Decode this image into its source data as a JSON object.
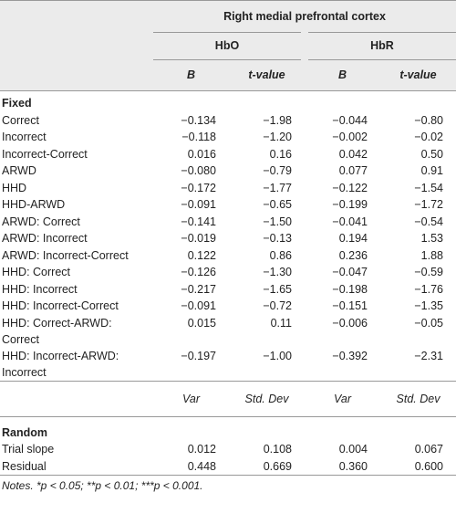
{
  "header": {
    "title": "Right medial prefrontal cortex",
    "groups": [
      "HbO",
      "HbR"
    ],
    "columns": [
      "B",
      "t-value",
      "B",
      "t-value"
    ]
  },
  "fixed": {
    "label": "Fixed",
    "rows": [
      [
        "Correct",
        "−0.134",
        "−1.98",
        "−0.044",
        "−0.80"
      ],
      [
        "Incorrect",
        "−0.118",
        "−1.20",
        "−0.002",
        "−0.02"
      ],
      [
        "Incorrect-Correct",
        "0.016",
        "0.16",
        "0.042",
        "0.50"
      ],
      [
        "ARWD",
        "−0.080",
        "−0.79",
        "0.077",
        "0.91"
      ],
      [
        "HHD",
        "−0.172",
        "−1.77",
        "−0.122",
        "−1.54"
      ],
      [
        "HHD-ARWD",
        "−0.091",
        "−0.65",
        "−0.199",
        "−1.72"
      ],
      [
        "ARWD: Correct",
        "−0.141",
        "−1.50",
        "−0.041",
        "−0.54"
      ],
      [
        "ARWD: Incorrect",
        "−0.019",
        "−0.13",
        "0.194",
        "1.53"
      ],
      [
        "ARWD: Incorrect-Correct",
        "0.122",
        "0.86",
        "0.236",
        "1.88"
      ],
      [
        "HHD: Correct",
        "−0.126",
        "−1.30",
        "−0.047",
        "−0.59"
      ],
      [
        "HHD: Incorrect",
        "−0.217",
        "−1.65",
        "−0.198",
        "−1.76"
      ],
      [
        "HHD: Incorrect-Correct",
        "−0.091",
        "−0.72",
        "−0.151",
        "−1.35"
      ],
      [
        "HHD: Correct-ARWD: Correct",
        "0.015",
        "0.11",
        "−0.006",
        "−0.05"
      ],
      [
        "HHD: Incorrect-ARWD: Incorrect",
        "−0.197",
        "−1.00",
        "−0.392",
        "−2.31"
      ]
    ]
  },
  "random": {
    "columns": [
      "Var",
      "Std. Dev",
      "Var",
      "Std. Dev"
    ],
    "label": "Random",
    "rows": [
      [
        "Trial slope",
        "0.012",
        "0.108",
        "0.004",
        "0.067"
      ],
      [
        "Residual",
        "0.448",
        "0.669",
        "0.360",
        "0.600"
      ]
    ]
  },
  "notes": "Notes. *p < 0.05; **p < 0.01; ***p < 0.001."
}
